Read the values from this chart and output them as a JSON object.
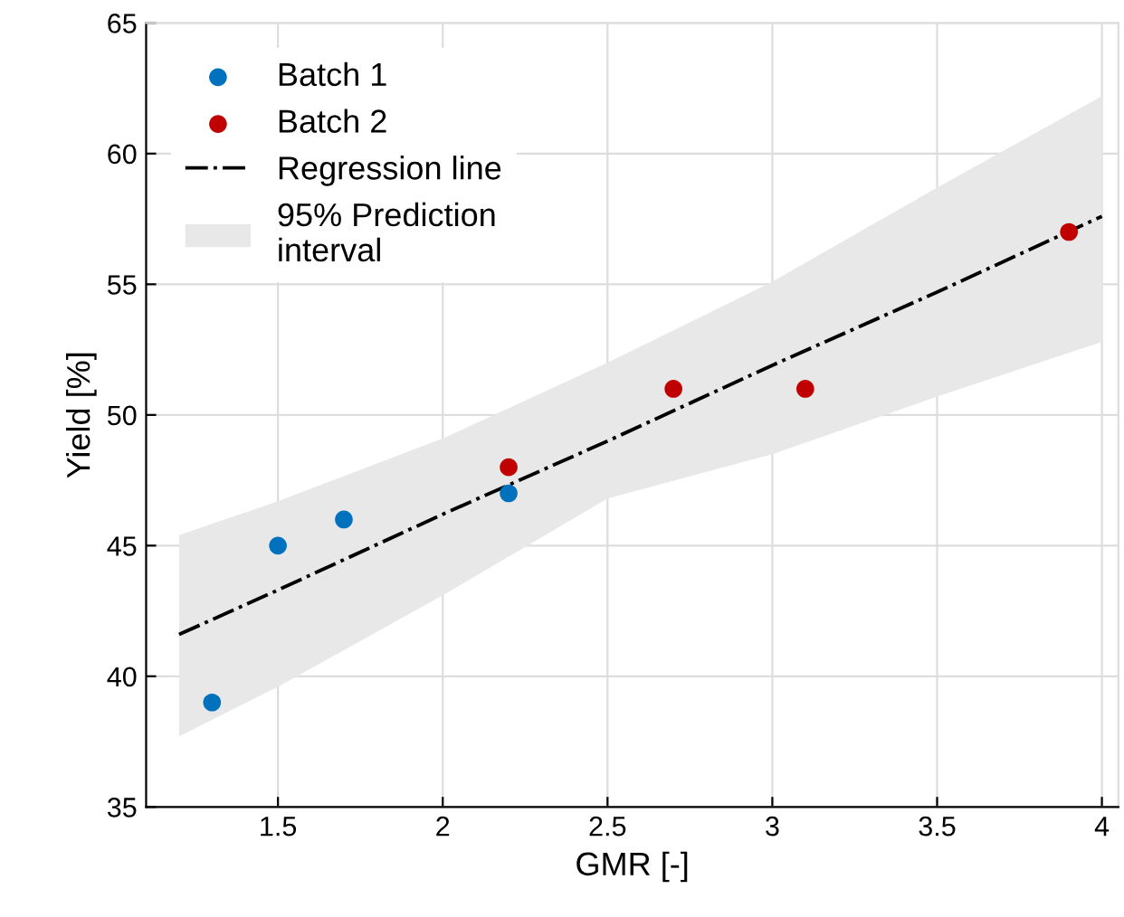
{
  "chart_data": {
    "type": "scatter",
    "xlabel": "GMR [-]",
    "ylabel": "Yield [%]",
    "xlim": [
      1.1,
      4.05
    ],
    "ylim": [
      35,
      65
    ],
    "xticks": [
      1.5,
      2,
      2.5,
      3,
      3.5,
      4
    ],
    "yticks": [
      35,
      40,
      45,
      50,
      55,
      60,
      65
    ],
    "grid": true,
    "legend": "top left",
    "series": [
      {
        "name": "Batch 1",
        "marker": "circle",
        "color": "#0072bd",
        "x": [
          1.3,
          1.5,
          1.7,
          2.2
        ],
        "values": [
          39,
          45,
          46,
          47
        ]
      },
      {
        "name": "Batch 2",
        "marker": "circle",
        "color": "#c00000",
        "x": [
          2.2,
          2.7,
          3.1,
          3.9
        ],
        "values": [
          48,
          51,
          51,
          57
        ]
      },
      {
        "name": "Regression line",
        "type": "line",
        "marker": "none",
        "color": "#000000",
        "line_style": "dashdot",
        "x": [
          1.2,
          1.5,
          2.0,
          2.5,
          3.0,
          3.5,
          4.0
        ],
        "values": [
          41.6,
          43.3,
          46.2,
          49.0,
          51.9,
          54.7,
          57.6
        ],
        "lower": [
          37.7,
          39.6,
          43.1,
          46.8,
          48.5,
          50.7,
          52.8
        ],
        "upper": [
          45.4,
          46.7,
          49.1,
          52.0,
          55.1,
          58.7,
          62.2
        ]
      },
      {
        "name": "95% Prediction\ninterval",
        "type": "area",
        "color": "#e8e8e8"
      }
    ]
  }
}
